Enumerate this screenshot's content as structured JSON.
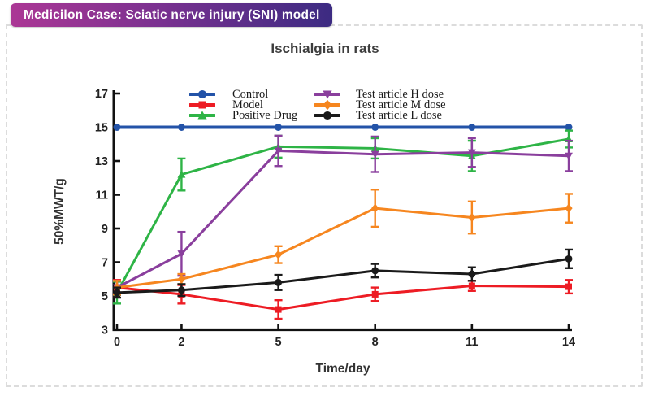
{
  "header": {
    "badge": "Medicilon Case: Sciatic nerve injury (SNI) model"
  },
  "chart_data": {
    "type": "line",
    "title": "Ischialgia in rats",
    "xlabel": "Time/day",
    "ylabel": "50%MWT/g",
    "x": [
      0,
      2,
      5,
      8,
      11,
      14
    ],
    "xticks": [
      "0",
      "2",
      "5",
      "8",
      "11",
      "14"
    ],
    "yticks": [
      "3",
      "5",
      "7",
      "9",
      "11",
      "13",
      "15",
      "17"
    ],
    "xlim": [
      0,
      14
    ],
    "ylim": [
      3,
      17
    ],
    "grid": false,
    "legend_position": "top-inside-two-columns",
    "error_bars": true,
    "series": [
      {
        "name": "Control",
        "color": "#2353a8",
        "marker": "circle",
        "values": [
          15,
          15,
          15,
          15,
          15,
          15
        ],
        "errors": [
          0,
          0,
          0,
          0,
          0,
          0
        ]
      },
      {
        "name": "Model",
        "color": "#ed1c24",
        "marker": "square",
        "values": [
          5.5,
          5.1,
          4.2,
          5.1,
          5.6,
          5.55
        ],
        "errors": [
          0.45,
          0.55,
          0.55,
          0.4,
          0.3,
          0.4
        ]
      },
      {
        "name": "Positive Drug",
        "color": "#2eb446",
        "marker": "triangle-up",
        "values": [
          5.2,
          12.2,
          13.85,
          13.75,
          13.3,
          14.3
        ],
        "errors": [
          0.65,
          0.95,
          0.65,
          0.6,
          0.9,
          0.5
        ]
      },
      {
        "name": "Test article H dose",
        "color": "#8a3f9d",
        "marker": "triangle-down",
        "values": [
          5.5,
          7.5,
          13.6,
          13.4,
          13.5,
          13.3
        ],
        "errors": [
          0.4,
          1.3,
          0.9,
          1.05,
          0.85,
          0.9
        ]
      },
      {
        "name": "Test article M dose",
        "color": "#f6861f",
        "marker": "diamond",
        "values": [
          5.5,
          6.0,
          7.45,
          10.2,
          9.65,
          10.2
        ],
        "errors": [
          0.4,
          0.3,
          0.5,
          1.1,
          0.95,
          0.85
        ]
      },
      {
        "name": "Test article L dose",
        "color": "#1a1a1a",
        "marker": "circle",
        "values": [
          5.2,
          5.35,
          5.8,
          6.5,
          6.3,
          7.2
        ],
        "errors": [
          0.3,
          0.35,
          0.45,
          0.4,
          0.4,
          0.55
        ]
      }
    ]
  }
}
